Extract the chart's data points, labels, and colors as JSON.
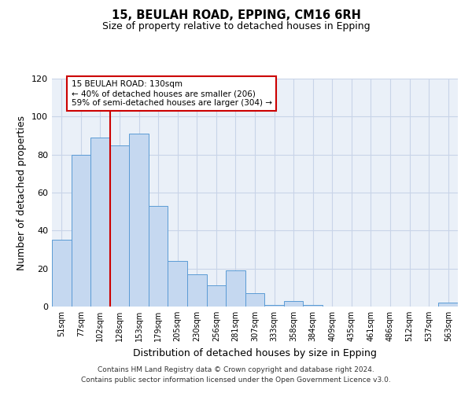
{
  "title": "15, BEULAH ROAD, EPPING, CM16 6RH",
  "subtitle": "Size of property relative to detached houses in Epping",
  "xlabel": "Distribution of detached houses by size in Epping",
  "ylabel": "Number of detached properties",
  "bar_labels": [
    "51sqm",
    "77sqm",
    "102sqm",
    "128sqm",
    "153sqm",
    "179sqm",
    "205sqm",
    "230sqm",
    "256sqm",
    "281sqm",
    "307sqm",
    "333sqm",
    "358sqm",
    "384sqm",
    "409sqm",
    "435sqm",
    "461sqm",
    "486sqm",
    "512sqm",
    "537sqm",
    "563sqm"
  ],
  "bar_values": [
    35,
    80,
    89,
    85,
    91,
    53,
    24,
    17,
    11,
    19,
    7,
    1,
    3,
    1,
    0,
    0,
    0,
    0,
    0,
    0,
    2
  ],
  "bar_color": "#c5d8f0",
  "bar_edge_color": "#5b9bd5",
  "vline_color": "#cc0000",
  "vline_x_index": 3,
  "annotation_title": "15 BEULAH ROAD: 130sqm",
  "annotation_line1": "← 40% of detached houses are smaller (206)",
  "annotation_line2": "59% of semi-detached houses are larger (304) →",
  "annotation_box_color": "#cc0000",
  "ylim": [
    0,
    120
  ],
  "yticks": [
    0,
    20,
    40,
    60,
    80,
    100,
    120
  ],
  "bg_color": "#eaf0f8",
  "grid_color": "#c8d4e8",
  "footer1": "Contains HM Land Registry data © Crown copyright and database right 2024.",
  "footer2": "Contains public sector information licensed under the Open Government Licence v3.0."
}
